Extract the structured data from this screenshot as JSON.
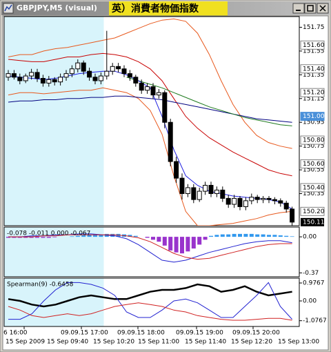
{
  "window": {
    "title": "GBPJPY,M5 (visual)",
    "event_label": "英）消費者物価指数"
  },
  "chart_data": [
    {
      "type": "candlestick",
      "open": [
        151.33,
        151.36,
        151.33,
        151.3,
        151.34,
        151.37,
        151.32,
        151.28,
        151.31,
        151.29,
        151.33,
        151.36,
        151.4,
        151.45,
        151.38,
        151.33,
        151.3,
        151.34,
        151.38,
        151.42,
        151.4,
        151.36,
        151.33,
        151.28,
        151.22,
        151.25,
        151.18,
        151.2,
        150.95,
        150.62,
        150.48,
        150.35,
        150.4,
        150.3,
        150.37,
        150.42,
        150.35,
        150.38,
        150.31,
        150.26,
        150.31,
        150.24,
        150.29,
        150.32,
        150.3,
        150.31,
        150.3,
        150.29,
        150.27,
        150.22
      ],
      "high": [
        151.39,
        151.39,
        151.36,
        151.36,
        151.4,
        151.4,
        151.35,
        151.34,
        151.33,
        151.36,
        151.39,
        151.43,
        151.48,
        151.47,
        151.41,
        151.36,
        151.37,
        151.72,
        151.45,
        151.45,
        151.43,
        151.39,
        151.35,
        151.31,
        151.28,
        151.28,
        151.23,
        151.22,
        150.98,
        150.66,
        150.52,
        150.43,
        150.43,
        150.4,
        150.45,
        150.45,
        150.41,
        150.41,
        150.34,
        150.34,
        150.33,
        150.32,
        150.35,
        150.34,
        150.33,
        150.33,
        150.32,
        150.31,
        150.29,
        150.24
      ],
      "low": [
        151.3,
        151.31,
        151.27,
        151.28,
        151.31,
        151.29,
        151.25,
        151.25,
        151.26,
        151.26,
        151.3,
        151.33,
        151.37,
        151.35,
        151.3,
        151.27,
        151.27,
        151.31,
        151.35,
        151.37,
        151.33,
        151.3,
        151.25,
        151.19,
        151.19,
        151.15,
        151.15,
        150.9,
        150.58,
        150.44,
        150.3,
        150.32,
        150.27,
        150.28,
        150.34,
        150.32,
        150.32,
        150.28,
        150.23,
        150.23,
        150.21,
        150.21,
        150.26,
        150.27,
        150.27,
        150.27,
        150.26,
        150.24,
        150.19,
        150.08
      ],
      "close": [
        151.36,
        151.33,
        151.3,
        151.34,
        151.37,
        151.32,
        151.28,
        151.31,
        151.29,
        151.33,
        151.36,
        151.4,
        151.45,
        151.38,
        151.33,
        151.3,
        151.34,
        151.38,
        151.42,
        151.4,
        151.36,
        151.33,
        151.28,
        151.22,
        151.25,
        151.18,
        151.2,
        150.95,
        150.62,
        150.48,
        150.35,
        150.4,
        150.3,
        150.37,
        150.42,
        150.35,
        150.38,
        150.31,
        150.26,
        150.31,
        150.24,
        150.29,
        150.32,
        150.3,
        150.31,
        150.3,
        150.29,
        150.27,
        150.22,
        150.11
      ],
      "up_color": "#ffffff",
      "down_color": "#000000",
      "series": [
        {
          "color": "#e8581c",
          "values": [
            151.5,
            151.52,
            151.52,
            151.55,
            151.57,
            151.58,
            151.6,
            151.62,
            151.64,
            151.66,
            151.7,
            151.74,
            151.78,
            151.81,
            151.82,
            151.8,
            151.7,
            151.52,
            151.3,
            151.1,
            150.95,
            150.84,
            150.78,
            150.75,
            150.73
          ]
        },
        {
          "color": "#e8581c",
          "values": [
            151.18,
            151.2,
            151.2,
            151.19,
            151.2,
            151.21,
            151.22,
            151.22,
            151.24,
            151.22,
            151.2,
            151.15,
            151.05,
            150.85,
            150.5,
            150.2,
            150.08,
            150.08,
            150.09,
            150.1,
            150.12,
            150.14,
            150.17,
            150.19,
            150.2
          ]
        },
        {
          "color": "#c80000",
          "values": [
            151.48,
            151.47,
            151.46,
            151.46,
            151.48,
            151.5,
            151.5,
            151.52,
            151.53,
            151.52,
            151.5,
            151.46,
            151.4,
            151.3,
            151.15,
            151.0,
            150.9,
            150.82,
            150.76,
            150.7,
            150.65,
            150.6,
            150.55,
            150.52,
            150.5
          ]
        },
        {
          "color": "#000080",
          "values": [
            151.12,
            151.13,
            151.13,
            151.14,
            151.14,
            151.15,
            151.15,
            151.16,
            151.16,
            151.17,
            151.17,
            151.16,
            151.15,
            151.14,
            151.12,
            151.1,
            151.08,
            151.06,
            151.04,
            151.02,
            151.0,
            150.98,
            150.97,
            150.96,
            150.95
          ]
        },
        {
          "color": "#1e7a1e",
          "values": [
            null,
            null,
            null,
            null,
            null,
            null,
            null,
            null,
            null,
            null,
            151.33,
            151.3,
            151.27,
            151.24,
            151.2,
            151.16,
            151.12,
            151.08,
            151.05,
            151.02,
            150.99,
            150.97,
            150.95,
            150.93,
            150.92
          ]
        },
        {
          "color": "#2020e0",
          "values": [
            151.34,
            151.33,
            151.32,
            151.31,
            151.32,
            151.34,
            151.36,
            151.37,
            151.38,
            151.38,
            151.35,
            151.3,
            151.24,
            151.0,
            150.72,
            150.5,
            150.42,
            150.37,
            150.35,
            150.33,
            150.32,
            150.31,
            150.3,
            150.28,
            150.22
          ]
        }
      ],
      "ylim": [
        150.08,
        151.84
      ],
      "yticks": [
        151.75,
        151.55,
        151.35,
        151.15,
        150.95,
        150.75,
        150.55,
        150.35
      ],
      "level_labels": [
        {
          "value": 151.6,
          "label": "151.60"
        },
        {
          "value": 151.4,
          "label": "151.40"
        },
        {
          "value": 151.2,
          "label": "151.20"
        },
        {
          "value": 151.0,
          "label": "151.00",
          "color": "#4a90d9"
        },
        {
          "value": 150.8,
          "label": "150.80"
        },
        {
          "value": 150.6,
          "label": "150.60"
        },
        {
          "value": 150.4,
          "label": "150.40"
        },
        {
          "value": 150.2,
          "label": "150.20"
        }
      ],
      "last_price": {
        "value": 150.11,
        "label": "150.11"
      }
    },
    {
      "type": "macd",
      "label": "-0.078 -0.011 0.000 -0.067",
      "values": [
        -0.01,
        -0.01,
        -0.01,
        -0.01,
        -0.01,
        -0.01,
        -0.01,
        -0.01,
        -0.005,
        0,
        0,
        0.005,
        0.01,
        0.015,
        0.02,
        0.025,
        0.02,
        0.03,
        0.03,
        0.03,
        0.025,
        0.02,
        0.01,
        0,
        -0.01,
        -0.03,
        -0.05,
        -0.09,
        -0.14,
        -0.16,
        -0.17,
        -0.15,
        -0.12,
        -0.08,
        -0.03,
        0.01,
        0.02,
        0.025,
        0.025,
        0.03,
        0.03,
        0.03,
        0.03,
        0.025,
        0.025,
        0.02,
        0.02,
        0.015,
        0.01,
        0.005
      ],
      "positive_color": "#3399ee",
      "negative_color": "#9933cc",
      "series": [
        {
          "color": "#2020d0",
          "values": [
            0.0,
            0.0,
            0.01,
            0.01,
            0.02,
            0.02,
            0.03,
            0.03,
            0.02,
            0.01,
            -0.02,
            -0.08,
            -0.16,
            -0.24,
            -0.26,
            -0.24,
            -0.2,
            -0.16,
            -0.13,
            -0.1,
            -0.07,
            -0.05,
            -0.04,
            -0.04,
            -0.06
          ]
        },
        {
          "color": "#d02020",
          "values": [
            0.0,
            0.0,
            0.0,
            0.01,
            0.01,
            0.02,
            0.02,
            0.02,
            0.02,
            0.02,
            0.01,
            -0.01,
            -0.05,
            -0.11,
            -0.17,
            -0.21,
            -0.23,
            -0.22,
            -0.19,
            -0.16,
            -0.13,
            -0.1,
            -0.08,
            -0.07,
            -0.07
          ]
        }
      ],
      "ylim": [
        -0.41,
        0.1
      ],
      "yticks": [
        {
          "value": 0,
          "label": "0.00"
        },
        -0.37
      ]
    },
    {
      "type": "line",
      "label": "Spearman(9) -0.6458",
      "series": [
        {
          "color": "#000000",
          "width": 2.5,
          "values": [
            0.1,
            0.0,
            -0.2,
            -0.3,
            -0.2,
            0.0,
            0.2,
            0.3,
            0.2,
            0.1,
            0.1,
            0.3,
            0.5,
            0.6,
            0.6,
            0.7,
            0.9,
            0.8,
            0.5,
            0.6,
            0.8,
            0.5,
            0.3,
            0.4,
            0.5
          ]
        },
        {
          "color": "#2020d0",
          "width": 1,
          "values": [
            -1.0,
            -1.0,
            -0.7,
            0.0,
            0.6,
            1.0,
            1.0,
            0.9,
            0.7,
            0.3,
            -0.6,
            -0.9,
            -0.9,
            -0.5,
            0.0,
            0.1,
            -0.1,
            -0.5,
            -0.9,
            -0.9,
            -0.3,
            0.3,
            1.0,
            -0.3,
            -1.0
          ]
        },
        {
          "color": "#d02020",
          "width": 1,
          "values": [
            -0.3,
            -0.5,
            -0.8,
            -0.9,
            -0.8,
            -0.7,
            -0.8,
            -0.7,
            -0.5,
            -0.3,
            -0.2,
            -0.1,
            -0.2,
            -0.3,
            -0.5,
            -0.6,
            -0.8,
            -0.9,
            -1.0,
            -1.05,
            -1.05,
            -1.0,
            -0.95,
            -0.95,
            -1.05
          ]
        }
      ],
      "ylim": [
        -1.39,
        1.24
      ],
      "yticks": [
        0.9767,
        {
          "value": 0,
          "label": "0.00"
        },
        -1.0767
      ]
    }
  ],
  "x_labels": {
    "row1": [
      "6 16:00",
      "09.09.15 17:00",
      "09.09.15 18:00",
      "09.09.15 19:00",
      "09.09.15 20:00"
    ],
    "row2": [
      "15 Sep 2009",
      "15 Sep 09:40",
      "15 Sep 10:20",
      "15 Sep 11:00",
      "15 Sep 11:40",
      "15 Sep 12:20",
      "15 Sep 13:00"
    ]
  }
}
